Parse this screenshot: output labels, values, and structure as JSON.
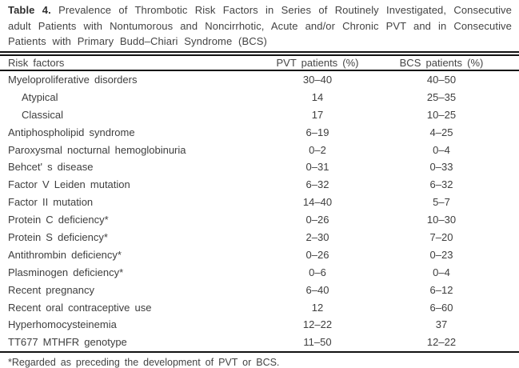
{
  "title": {
    "label": "Table 4.",
    "text": "Prevalence of Thrombotic Risk Factors in Series of Routinely Investigated, Consecutive adult Patients with Nontumorous and Noncirrhotic, Acute and/or Chronic PVT and in Consecutive Patients with Primary Budd–Chiari Syndrome (BCS)"
  },
  "table": {
    "columns": [
      "Risk factors",
      "PVT patients (%)",
      "BCS patients (%)"
    ],
    "rows": [
      {
        "label": "Myeloproliferative disorders",
        "indent": false,
        "pvt": "30–40",
        "bcs": "40–50"
      },
      {
        "label": "Atypical",
        "indent": true,
        "pvt": "14",
        "bcs": "25–35"
      },
      {
        "label": "Classical",
        "indent": true,
        "pvt": "17",
        "bcs": "10–25"
      },
      {
        "label": "Antiphospholipid syndrome",
        "indent": false,
        "pvt": "6–19",
        "bcs": "4–25"
      },
      {
        "label": "Paroxysmal nocturnal hemoglobinuria",
        "indent": false,
        "pvt": "0–2",
        "bcs": "0–4"
      },
      {
        "label": "Behcet' s disease",
        "indent": false,
        "pvt": "0–31",
        "bcs": "0–33"
      },
      {
        "label": "Factor V Leiden mutation",
        "indent": false,
        "pvt": "6–32",
        "bcs": "6–32"
      },
      {
        "label": "Factor II mutation",
        "indent": false,
        "pvt": "14–40",
        "bcs": "5–7"
      },
      {
        "label": "Protein C deficiency*",
        "indent": false,
        "pvt": "0–26",
        "bcs": "10–30"
      },
      {
        "label": "Protein S deficiency*",
        "indent": false,
        "pvt": "2–30",
        "bcs": "7–20"
      },
      {
        "label": "Antithrombin deficiency*",
        "indent": false,
        "pvt": "0–26",
        "bcs": "0–23"
      },
      {
        "label": "Plasminogen deficiency*",
        "indent": false,
        "pvt": "0–6",
        "bcs": "0–4"
      },
      {
        "label": "Recent pregnancy",
        "indent": false,
        "pvt": "6–40",
        "bcs": "6–12"
      },
      {
        "label": "Recent oral contraceptive use",
        "indent": false,
        "pvt": "12",
        "bcs": "6–60"
      },
      {
        "label": "Hyperhomocysteinemia",
        "indent": false,
        "pvt": "12–22",
        "bcs": "37"
      },
      {
        "label": "TT677 MTHFR genotype",
        "indent": false,
        "pvt": "11–50",
        "bcs": "12–22"
      }
    ],
    "footnote": "*Regarded as preceding the development of PVT or BCS."
  }
}
